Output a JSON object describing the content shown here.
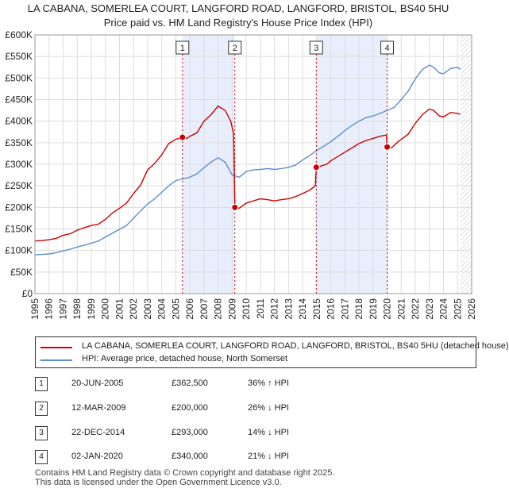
{
  "title_line1": "LA CABANA, SOMERLEA COURT, LANGFORD ROAD, LANGFORD, BRISTOL, BS40 5HU",
  "title_line2": "Price paid vs. HM Land Registry's House Price Index (HPI)",
  "colors": {
    "property": "#cc0000",
    "hpi": "#5b8fcc",
    "shade": "#e8eefb",
    "hatch": "#bbbbbb",
    "grid": "#dddddd"
  },
  "legend": {
    "property_label": "LA CABANA, SOMERLEA COURT, LANGFORD ROAD, LANGFORD, BRISTOL, BS40 5HU (detached house)",
    "hpi_label": "HPI: Average price, detached house, North Somerset"
  },
  "transactions": [
    {
      "num": "1",
      "date": "20-JUN-2005",
      "price": "£362,500",
      "hpi": "36% ↑ HPI"
    },
    {
      "num": "2",
      "date": "12-MAR-2009",
      "price": "£200,000",
      "hpi": "26% ↓ HPI"
    },
    {
      "num": "3",
      "date": "22-DEC-2014",
      "price": "£293,000",
      "hpi": "14% ↓ HPI"
    },
    {
      "num": "4",
      "date": "02-JAN-2020",
      "price": "£340,000",
      "hpi": "21% ↓ HPI"
    }
  ],
  "footer_line1": "Contains HM Land Registry data © Crown copyright and database right 2025.",
  "footer_line2": "This data is licensed under the Open Government Licence v3.0.",
  "chart_data": {
    "type": "line",
    "xlim": [
      1995,
      2026
    ],
    "ylim": [
      0,
      600000
    ],
    "x_ticks": [
      1995,
      1996,
      1997,
      1998,
      1999,
      2000,
      2001,
      2002,
      2003,
      2004,
      2005,
      2006,
      2007,
      2008,
      2009,
      2010,
      2011,
      2012,
      2013,
      2014,
      2015,
      2016,
      2017,
      2018,
      2019,
      2020,
      2021,
      2022,
      2023,
      2024,
      2025,
      2026
    ],
    "y_ticks": [
      0,
      50000,
      100000,
      150000,
      200000,
      250000,
      300000,
      350000,
      400000,
      450000,
      500000,
      550000,
      600000
    ],
    "y_tick_labels": [
      "£0",
      "£50K",
      "£100K",
      "£150K",
      "£200K",
      "£250K",
      "£300K",
      "£350K",
      "£400K",
      "£450K",
      "£500K",
      "£550K",
      "£600K"
    ],
    "shaded_periods": [
      [
        2005.47,
        2009.19
      ],
      [
        2014.97,
        2020.0
      ]
    ],
    "future_hatch_from": 2025.2,
    "markers": [
      {
        "label": "1",
        "x": 2005.47,
        "y": 362500
      },
      {
        "label": "2",
        "x": 2009.19,
        "y": 200000
      },
      {
        "label": "3",
        "x": 2014.97,
        "y": 293000
      },
      {
        "label": "4",
        "x": 2020.0,
        "y": 340000
      }
    ],
    "series": [
      {
        "name": "property",
        "points": [
          [
            1995,
            122000
          ],
          [
            1995.5,
            123000
          ],
          [
            1996,
            125000
          ],
          [
            1996.5,
            128000
          ],
          [
            1997,
            135000
          ],
          [
            1997.5,
            139000
          ],
          [
            1998,
            147000
          ],
          [
            1998.5,
            153000
          ],
          [
            1999,
            158000
          ],
          [
            1999.5,
            161000
          ],
          [
            2000,
            172000
          ],
          [
            2000.5,
            187000
          ],
          [
            2001,
            198000
          ],
          [
            2001.5,
            210000
          ],
          [
            2002,
            232000
          ],
          [
            2002.5,
            252000
          ],
          [
            2003,
            287000
          ],
          [
            2003.5,
            302000
          ],
          [
            2004,
            322000
          ],
          [
            2004.5,
            348000
          ],
          [
            2005,
            358000
          ],
          [
            2005.47,
            362500
          ],
          [
            2005.8,
            360000
          ],
          [
            2006,
            365000
          ],
          [
            2006.5,
            373000
          ],
          [
            2007,
            400000
          ],
          [
            2007.5,
            415000
          ],
          [
            2008,
            435000
          ],
          [
            2008.5,
            425000
          ],
          [
            2008.9,
            400000
          ],
          [
            2009.1,
            370000
          ],
          [
            2009.19,
            200000
          ],
          [
            2009.5,
            198000
          ],
          [
            2010,
            210000
          ],
          [
            2010.5,
            215000
          ],
          [
            2011,
            220000
          ],
          [
            2011.5,
            218000
          ],
          [
            2012,
            215000
          ],
          [
            2012.5,
            218000
          ],
          [
            2013,
            220000
          ],
          [
            2013.5,
            225000
          ],
          [
            2014,
            232000
          ],
          [
            2014.5,
            240000
          ],
          [
            2014.9,
            250000
          ],
          [
            2014.97,
            293000
          ],
          [
            2015.3,
            296000
          ],
          [
            2015.7,
            300000
          ],
          [
            2016,
            308000
          ],
          [
            2016.5,
            318000
          ],
          [
            2017,
            328000
          ],
          [
            2017.5,
            338000
          ],
          [
            2018,
            348000
          ],
          [
            2018.5,
            355000
          ],
          [
            2019,
            360000
          ],
          [
            2019.5,
            365000
          ],
          [
            2019.95,
            368000
          ],
          [
            2020.0,
            340000
          ],
          [
            2020.3,
            338000
          ],
          [
            2020.7,
            350000
          ],
          [
            2021,
            358000
          ],
          [
            2021.5,
            370000
          ],
          [
            2022,
            395000
          ],
          [
            2022.5,
            415000
          ],
          [
            2023,
            428000
          ],
          [
            2023.3,
            425000
          ],
          [
            2023.7,
            412000
          ],
          [
            2024,
            410000
          ],
          [
            2024.5,
            420000
          ],
          [
            2025,
            418000
          ],
          [
            2025.2,
            416000
          ]
        ]
      },
      {
        "name": "hpi",
        "points": [
          [
            1995,
            90000
          ],
          [
            1995.5,
            91000
          ],
          [
            1996,
            92000
          ],
          [
            1996.5,
            95000
          ],
          [
            1997,
            99000
          ],
          [
            1997.5,
            103000
          ],
          [
            1998,
            108000
          ],
          [
            1998.5,
            112000
          ],
          [
            1999,
            117000
          ],
          [
            1999.5,
            122000
          ],
          [
            2000,
            131000
          ],
          [
            2000.5,
            140000
          ],
          [
            2001,
            149000
          ],
          [
            2001.5,
            158000
          ],
          [
            2002,
            175000
          ],
          [
            2002.5,
            192000
          ],
          [
            2003,
            208000
          ],
          [
            2003.5,
            220000
          ],
          [
            2004,
            235000
          ],
          [
            2004.5,
            250000
          ],
          [
            2005,
            262000
          ],
          [
            2005.5,
            266000
          ],
          [
            2006,
            270000
          ],
          [
            2006.5,
            278000
          ],
          [
            2007,
            292000
          ],
          [
            2007.5,
            305000
          ],
          [
            2008,
            315000
          ],
          [
            2008.5,
            305000
          ],
          [
            2009,
            275000
          ],
          [
            2009.5,
            270000
          ],
          [
            2010,
            283000
          ],
          [
            2010.5,
            287000
          ],
          [
            2011,
            288000
          ],
          [
            2011.5,
            290000
          ],
          [
            2012,
            288000
          ],
          [
            2012.5,
            290000
          ],
          [
            2013,
            293000
          ],
          [
            2013.5,
            298000
          ],
          [
            2014,
            310000
          ],
          [
            2014.5,
            320000
          ],
          [
            2015,
            332000
          ],
          [
            2015.5,
            342000
          ],
          [
            2016,
            352000
          ],
          [
            2016.5,
            365000
          ],
          [
            2017,
            378000
          ],
          [
            2017.5,
            390000
          ],
          [
            2018,
            400000
          ],
          [
            2018.5,
            408000
          ],
          [
            2019,
            412000
          ],
          [
            2019.5,
            418000
          ],
          [
            2020,
            425000
          ],
          [
            2020.5,
            432000
          ],
          [
            2021,
            450000
          ],
          [
            2021.5,
            470000
          ],
          [
            2022,
            498000
          ],
          [
            2022.5,
            520000
          ],
          [
            2023,
            530000
          ],
          [
            2023.3,
            525000
          ],
          [
            2023.7,
            512000
          ],
          [
            2024,
            510000
          ],
          [
            2024.5,
            522000
          ],
          [
            2025,
            525000
          ],
          [
            2025.2,
            520000
          ]
        ]
      }
    ]
  }
}
